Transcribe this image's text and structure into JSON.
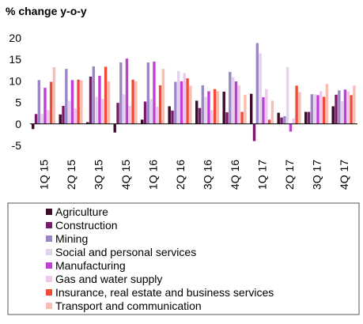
{
  "chart_data": {
    "type": "bar",
    "title": "% change y-o-y",
    "xlabel": "",
    "ylabel": "",
    "ylim": [
      -5,
      20
    ],
    "yticks": [
      -5,
      0,
      5,
      10,
      15,
      20
    ],
    "grid": false,
    "legend_position": "bottom",
    "categories": [
      "1Q 15",
      "2Q 15",
      "3Q 15",
      "4Q 15",
      "1Q 16",
      "2Q 16",
      "3Q 16",
      "4Q 16",
      "1Q 17",
      "2Q 17",
      "3Q 17",
      "4Q 17"
    ],
    "series": [
      {
        "name": "Agriculture",
        "color": "#3d0c2b",
        "values": [
          -1.2,
          2.2,
          0.4,
          -2.0,
          1.0,
          4.1,
          5.4,
          7.5,
          7.0,
          2.6,
          2.8,
          4.1
        ]
      },
      {
        "name": "Construction",
        "color": "#7a1a6b",
        "values": [
          2.3,
          4.2,
          11.0,
          4.9,
          5.2,
          3.1,
          3.7,
          2.7,
          -4.0,
          1.5,
          2.8,
          6.8
        ]
      },
      {
        "name": "Mining",
        "color": "#9b86c8",
        "values": [
          10.2,
          12.8,
          13.4,
          14.3,
          14.3,
          9.8,
          9.0,
          12.1,
          18.8,
          1.8,
          6.9,
          7.8
        ]
      },
      {
        "name": "Social and personal services",
        "color": "#e2d2ea",
        "values": [
          2.3,
          5.4,
          6.3,
          6.9,
          5.8,
          12.3,
          6.3,
          10.9,
          16.4,
          13.2,
          6.9,
          5.3
        ]
      },
      {
        "name": "Manufacturing",
        "color": "#c23fd6",
        "values": [
          8.4,
          10.2,
          11.2,
          15.2,
          14.5,
          9.9,
          7.6,
          9.9,
          6.2,
          -1.8,
          6.7,
          8.0
        ]
      },
      {
        "name": "Gas and water supply",
        "color": "#f1c7ee",
        "values": [
          3.2,
          3.6,
          5.8,
          4.2,
          4.0,
          11.8,
          3.2,
          9.0,
          8.1,
          1.3,
          7.6,
          7.6
        ]
      },
      {
        "name": "Insurance, real estate and business services",
        "color": "#f24a36",
        "values": [
          9.8,
          10.3,
          13.3,
          10.3,
          9.0,
          10.6,
          8.1,
          2.8,
          1.0,
          8.9,
          6.3,
          6.7
        ]
      },
      {
        "name": "Transport and communication",
        "color": "#f8beb2",
        "values": [
          13.2,
          10.1,
          9.9,
          9.9,
          12.8,
          8.9,
          7.6,
          6.8,
          5.4,
          7.4,
          9.3,
          8.9
        ]
      }
    ]
  }
}
